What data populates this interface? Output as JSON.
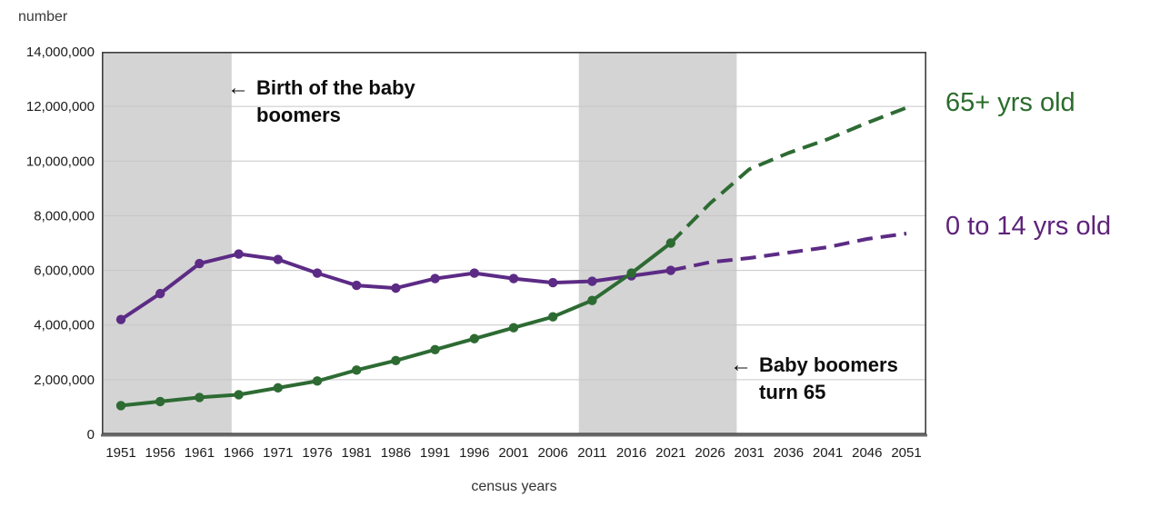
{
  "annotations": [
    {
      "arrow": "←",
      "line1": "Birth of the baby",
      "line2": "boomers"
    },
    {
      "arrow": "←",
      "line1": "Baby boomers",
      "line2": "turn 65"
    }
  ],
  "legend": [
    {
      "label": "65+ yrs old",
      "color": "#2a6c2c"
    },
    {
      "label": "0 to 14 yrs old",
      "color": "#5e2379"
    }
  ],
  "chart_data": {
    "type": "line",
    "title": "",
    "xlabel": "census years",
    "ylabel": "number",
    "ylim": [
      0,
      14000000
    ],
    "ytick_step": 2000000,
    "grid": true,
    "legend_position": "right",
    "x": [
      1951,
      1956,
      1961,
      1966,
      1971,
      1976,
      1981,
      1986,
      1991,
      1996,
      2001,
      2006,
      2011,
      2016,
      2021,
      2026,
      2031,
      2036,
      2041,
      2046,
      2051
    ],
    "projection_start_year": 2021,
    "series": [
      {
        "name": "0 to 14 yrs old",
        "slug": "0-to-14-yrs-old",
        "color": "#5c2b85",
        "values": [
          4200000,
          5150000,
          6250000,
          6600000,
          6400000,
          5900000,
          5450000,
          5350000,
          5700000,
          5900000,
          5700000,
          5550000,
          5600000,
          5800000,
          6000000,
          6300000,
          6450000,
          6650000,
          6850000,
          7150000,
          7350000
        ]
      },
      {
        "name": "65+ yrs old",
        "slug": "65-plus-yrs-old",
        "color": "#2d6b33",
        "values": [
          1050000,
          1200000,
          1350000,
          1450000,
          1700000,
          1950000,
          2350000,
          2700000,
          3100000,
          3500000,
          3900000,
          4300000,
          4900000,
          5900000,
          7000000,
          8450000,
          9700000,
          10300000,
          10800000,
          11400000,
          11950000
        ]
      }
    ],
    "shaded_bands": [
      {
        "name": "birth-of-the-baby-boomers",
        "label": "Birth of the baby boomers",
        "from_year": 1948.4,
        "to_year": 1965.1
      },
      {
        "name": "baby-boomers-turn-65",
        "label": "Baby boomers turn 65",
        "from_year": 2009.3,
        "to_year": 2029.4
      }
    ]
  }
}
